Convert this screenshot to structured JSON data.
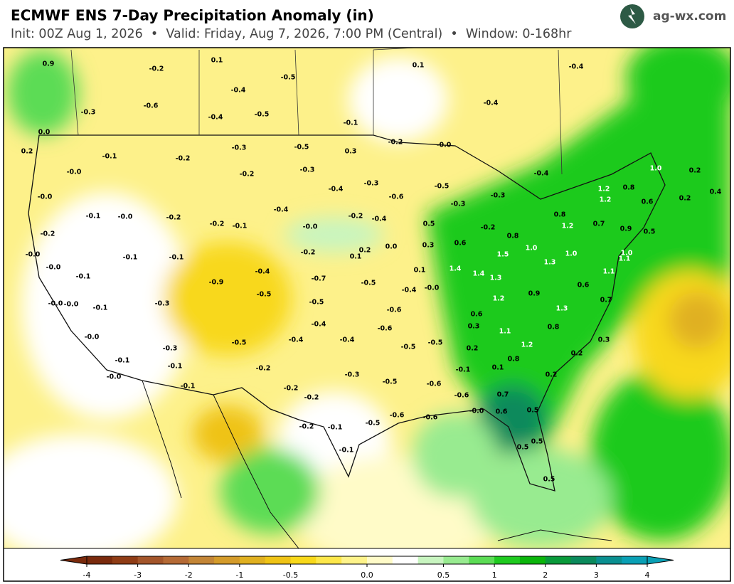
{
  "header": {
    "title": "ECMWF ENS 7-Day Precipitation Anomaly (in)",
    "subtitle": "Init: 00Z Aug 1, 2026  •  Valid: Friday, Aug 7, 2026, 7:00 PM (Central)  •  Window: 0-168hr",
    "brand": "ag-wx.com"
  },
  "map_labels": [
    "0.9",
    "-0.2",
    "0.1",
    "-0.5",
    "0.1",
    "-0.4",
    "-0.4",
    "-0.6",
    "-0.3",
    "-0.4",
    "-0.5",
    "-0.4",
    "-0.1",
    "0.0",
    "0.2",
    "-0.1",
    "-0.2",
    "-0.3",
    "-0.5",
    "0.3",
    "-0.2",
    "-0.0",
    "-0.0",
    "-0.2",
    "-0.3",
    "-0.4",
    "1.0",
    "0.2",
    "-0.4",
    "-0.3",
    "-0.5",
    "-0.6",
    "1.2",
    "0.8",
    "0.4",
    "-0.0",
    "1.2",
    "-0.3",
    "0.2",
    "0.6",
    "-0.4",
    "-0.2",
    "-0.4",
    "-0.3",
    "-0.1",
    "-0.0",
    "-0.2",
    "-0.2",
    "-0.1",
    "0.8",
    "0.5",
    "-0.2",
    "1.2",
    "0.7",
    "0.9",
    "0.5",
    "-0.2",
    "-0.0",
    "0.8",
    "0.3",
    "0.6",
    "1.0",
    "0.2",
    "0.0",
    "-0.2",
    "-0.0",
    "-0.1",
    "-0.1",
    "0.1",
    "1.5",
    "1.0",
    "1.0",
    "1.1",
    "-0.0",
    "-0.4",
    "0.1",
    "1.4",
    "1.4",
    "1.3",
    "1.1",
    "-0.1",
    "-0.9",
    "-0.7",
    "-0.5",
    "-0.4",
    "-0.0",
    "1.3",
    "0.6",
    "-0.5",
    "0.9",
    "1.2",
    "0.7",
    "-0.0",
    "-0.0",
    "-0.1",
    "-0.3",
    "-0.5",
    "-0.6",
    "1.3",
    "0.6",
    "-0.4",
    "-0.6",
    "0.3",
    "1.1",
    "0.8",
    "-0.0",
    "-0.4",
    "-0.4",
    "0.3",
    "-0.5",
    "-0.5",
    "1.2",
    "-0.3",
    "-0.5",
    "0.2",
    "0.2",
    "-0.1",
    "-0.1",
    "-0.2",
    "0.8",
    "-0.1",
    "0.1",
    "-0.0",
    "-0.3",
    "0.2",
    "-0.5",
    "-0.6",
    "-0.1",
    "-0.2",
    "-0.2",
    "-0.6",
    "0.7",
    "-0.6",
    "-0.6",
    "-0.0",
    "0.6",
    "0.5",
    "-0.2",
    "-0.1",
    "-0.5",
    "-0.1",
    "0.5",
    "0.5",
    "0.5"
  ],
  "colorbar": {
    "colors": [
      "#7a2a0c",
      "#8f3c15",
      "#a3552a",
      "#b56a35",
      "#c38536",
      "#d49b2a",
      "#e0b020",
      "#efc315",
      "#f8d81a",
      "#fde74a",
      "#fef38a",
      "#fffbc8",
      "#ffffff",
      "#c8f5c0",
      "#98eb90",
      "#5cdc55",
      "#1fca1f",
      "#0bb50b",
      "#099a3a",
      "#0b8a5c",
      "#0a8f90",
      "#0aa0b5"
    ],
    "ticks": [
      -4,
      -3,
      -2,
      -1,
      -0.5,
      {
        "value": 0,
        "label": "0.0"
      },
      0.5,
      1,
      2,
      3,
      4
    ]
  }
}
